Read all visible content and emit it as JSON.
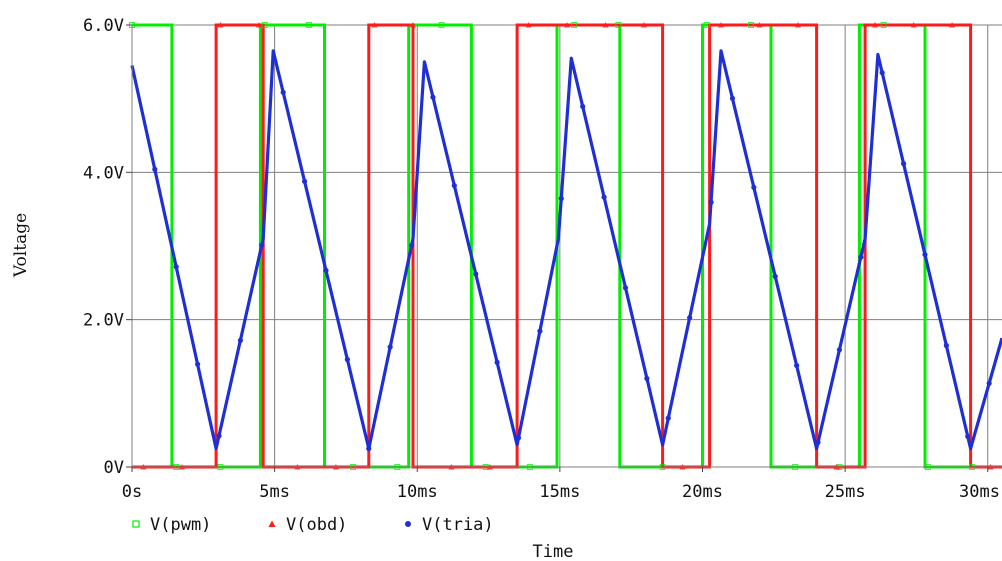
{
  "chart_data": {
    "type": "line",
    "xlabel": "Time",
    "ylabel": "Voltage",
    "xlim": [
      0,
      30.5
    ],
    "ylim": [
      0,
      6
    ],
    "grid": true,
    "legend_position": "bottom-left",
    "x_ticks": [
      {
        "value": 0,
        "label": "0s"
      },
      {
        "value": 5,
        "label": "5ms"
      },
      {
        "value": 10,
        "label": "10ms"
      },
      {
        "value": 15,
        "label": "15ms"
      },
      {
        "value": 20,
        "label": "20ms"
      },
      {
        "value": 25,
        "label": "25ms"
      },
      {
        "value": 30,
        "label": "30ms"
      }
    ],
    "y_ticks": [
      {
        "value": 0,
        "label": "0V"
      },
      {
        "value": 2,
        "label": "2.0V"
      },
      {
        "value": 4,
        "label": "4.0V"
      },
      {
        "value": 6,
        "label": "6.0V"
      }
    ],
    "series": [
      {
        "name": "V(pwm)",
        "color": "#00ee00",
        "marker": "square",
        "x": [
          0,
          1.4,
          1.4,
          4.5,
          4.5,
          6.75,
          6.75,
          9.7,
          9.7,
          11.9,
          11.9,
          14.9,
          14.9,
          17.1,
          17.1,
          20.0,
          20.0,
          22.4,
          22.4,
          25.5,
          25.5,
          27.8,
          27.8,
          30.5
        ],
        "values": [
          6,
          6,
          0,
          0,
          6,
          6,
          0,
          0,
          6,
          6,
          0,
          0,
          6,
          6,
          0,
          0,
          6,
          6,
          0,
          0,
          6,
          6,
          0,
          0
        ]
      },
      {
        "name": "V(obd)",
        "color": "#ff1a1a",
        "marker": "triangle",
        "x": [
          0,
          2.95,
          2.95,
          4.6,
          4.6,
          8.3,
          8.3,
          9.85,
          9.85,
          13.5,
          13.5,
          18.6,
          18.6,
          20.25,
          20.25,
          24.0,
          24.0,
          25.7,
          25.7,
          29.4,
          29.4,
          30.5
        ],
        "values": [
          0,
          0,
          6,
          6,
          0,
          0,
          6,
          6,
          0,
          0,
          6,
          6,
          0,
          0,
          6,
          6,
          0,
          0,
          6,
          6,
          0,
          0
        ]
      },
      {
        "name": "V(tria)",
        "color": "#1f2fd6",
        "marker": "circle",
        "x": [
          0,
          2.95,
          4.6,
          4.95,
          8.3,
          9.85,
          10.25,
          13.5,
          14.95,
          15.4,
          18.6,
          20.25,
          20.65,
          24.0,
          25.7,
          26.15,
          29.4,
          30.5
        ],
        "values": [
          5.45,
          0.25,
          3.1,
          5.65,
          0.25,
          3.1,
          5.5,
          0.3,
          3.1,
          5.55,
          0.3,
          3.3,
          5.65,
          0.25,
          3.1,
          5.6,
          0.25,
          1.75
        ]
      }
    ]
  }
}
